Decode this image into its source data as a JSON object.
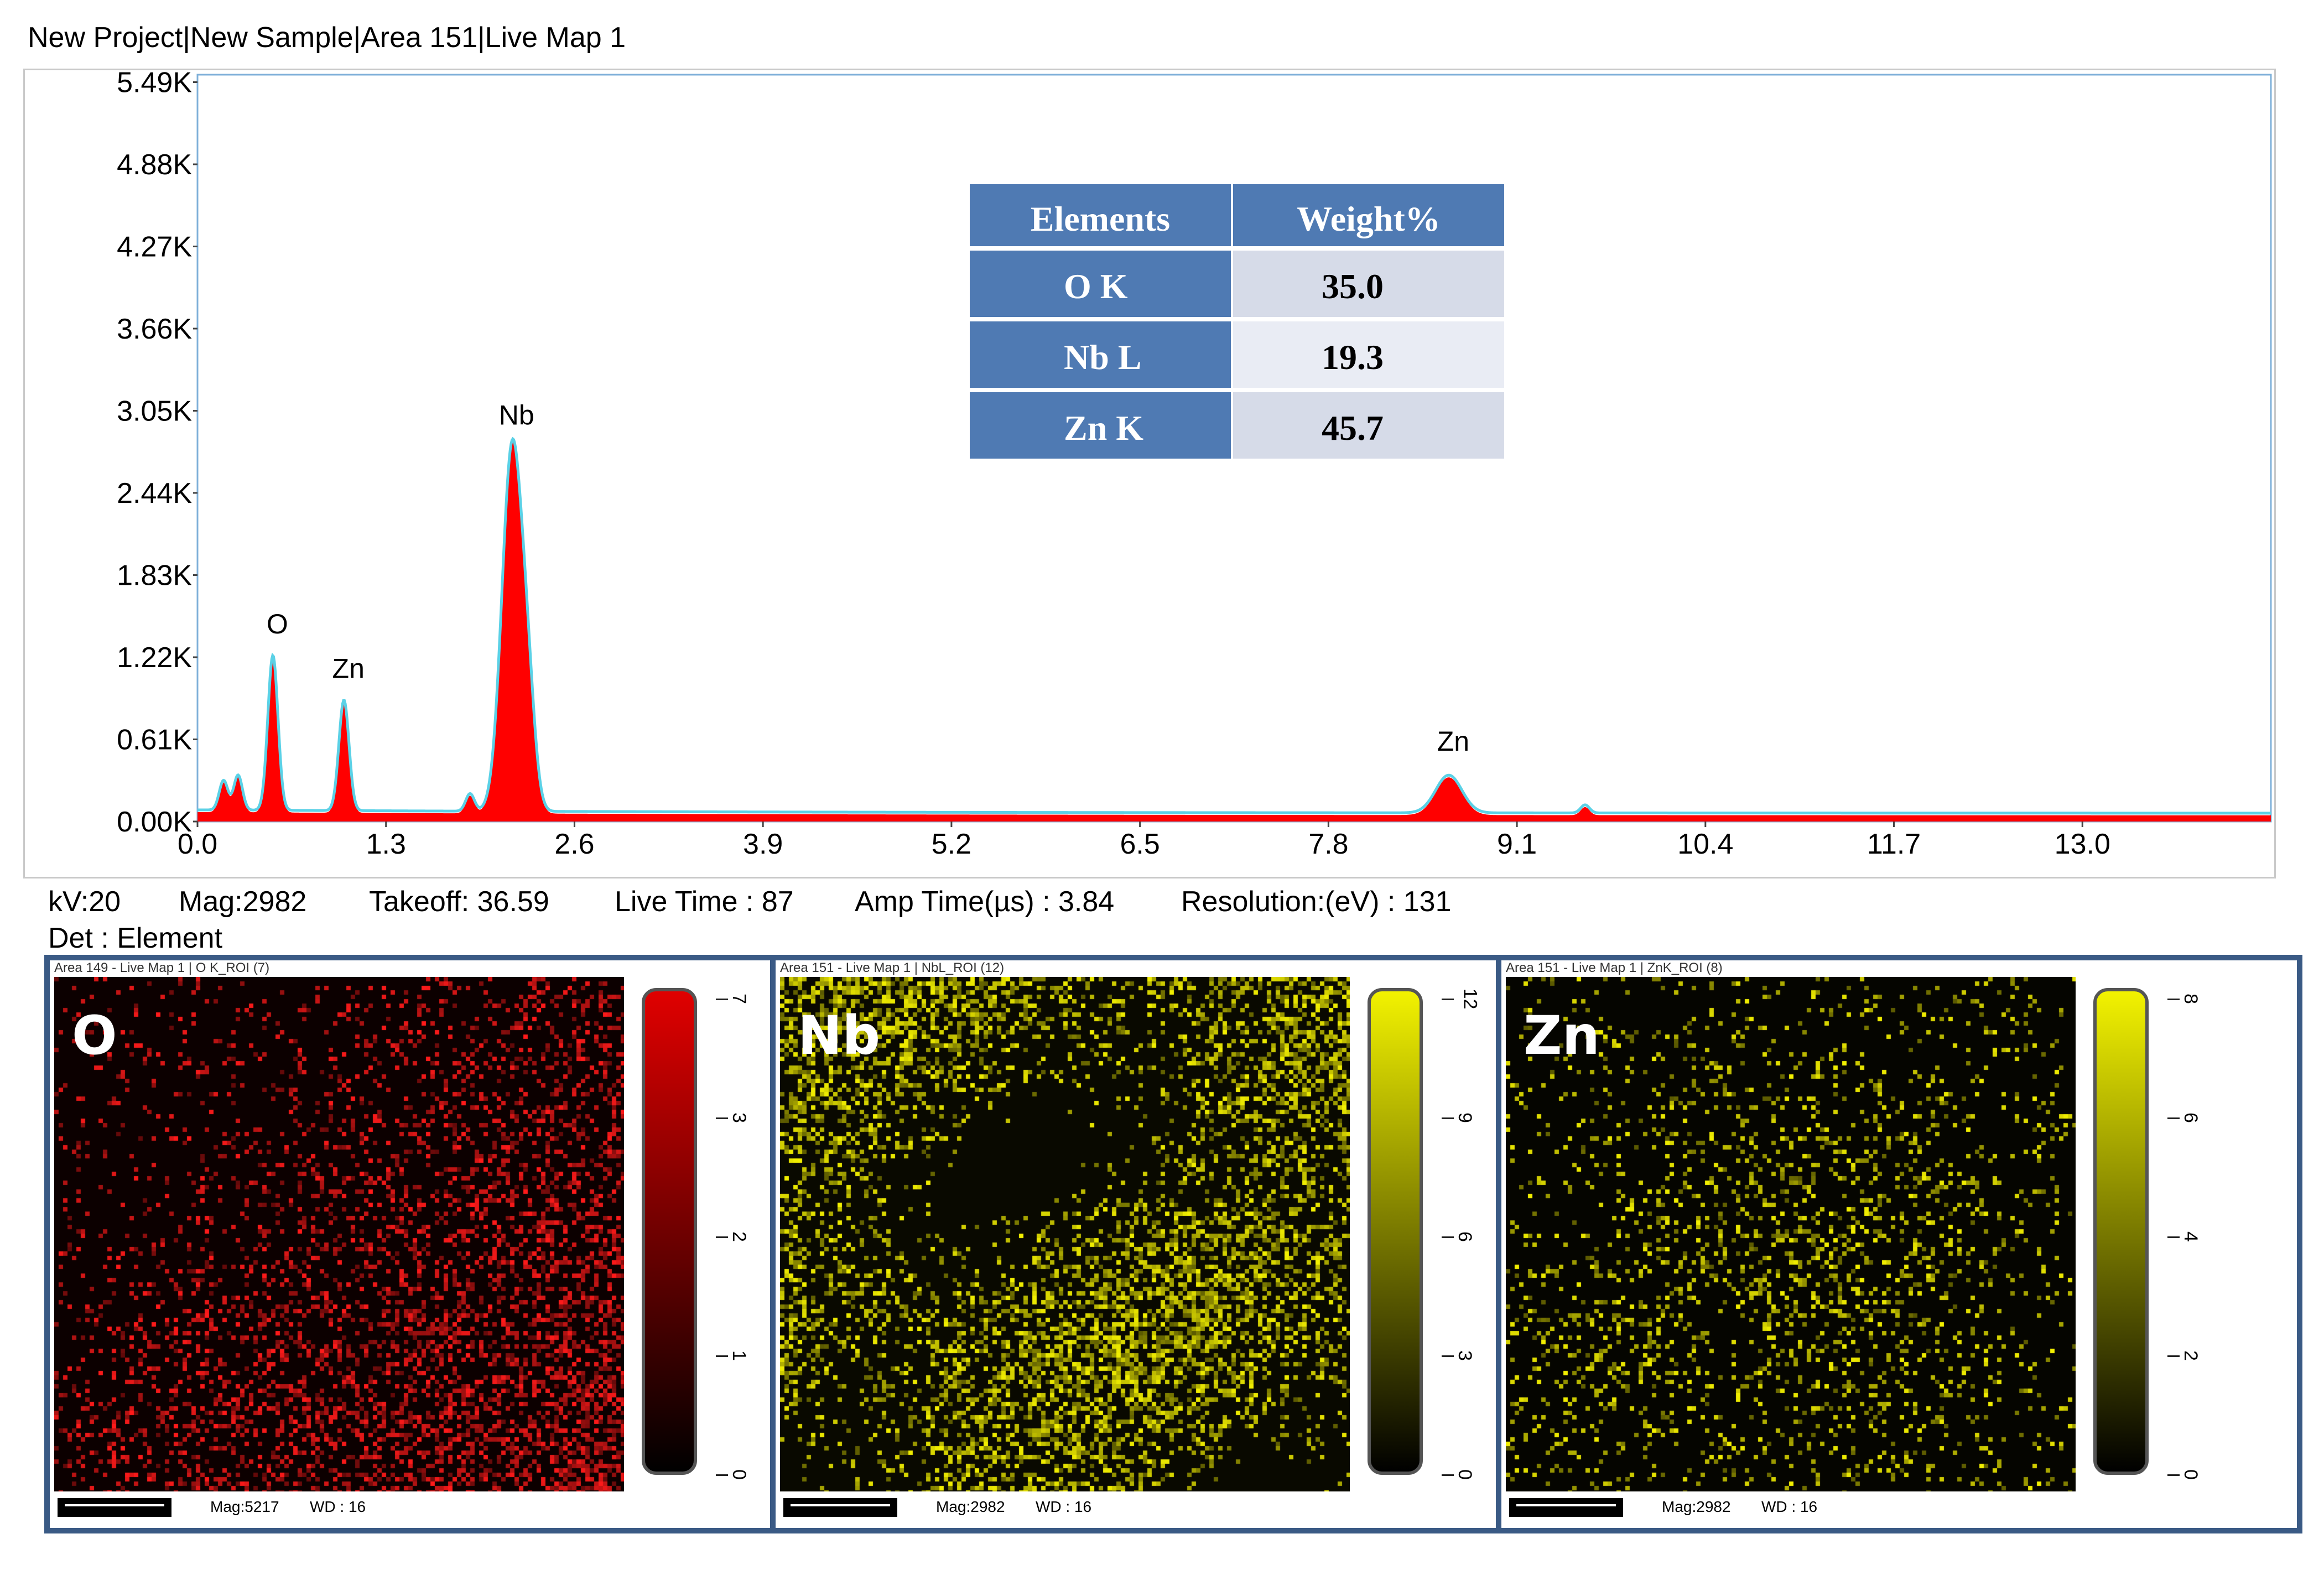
{
  "title": "New Project|New Sample|Area 151|Live Map 1",
  "colors": {
    "frame": "#3a5a85",
    "table_header": "#4f7ab3",
    "table_cell_a": "#d6dbe8",
    "table_cell_b": "#e9ecf4",
    "spectrum_fill": "#ff0000",
    "spectrum_line": "#5bd1e6"
  },
  "chart_data": {
    "type": "area",
    "xlabel": "",
    "ylabel": "",
    "xlim": [
      0.0,
      14.3
    ],
    "ylim": [
      0,
      5490
    ],
    "x_ticks": [
      "0.0",
      "1.3",
      "2.6",
      "3.9",
      "5.2",
      "6.5",
      "7.8",
      "9.1",
      "10.4",
      "11.7",
      "13.0"
    ],
    "y_ticks": [
      "0.00K",
      "0.61K",
      "1.22K",
      "1.83K",
      "2.44K",
      "3.05K",
      "3.66K",
      "4.27K",
      "4.88K",
      "5.49K"
    ],
    "peaks": [
      {
        "label": "O",
        "x": 0.52,
        "y": 1150
      },
      {
        "label": "Zn",
        "x": 1.01,
        "y": 820
      },
      {
        "label": "Nb",
        "x": 2.17,
        "y": 2700
      },
      {
        "label": "Zn",
        "x": 8.63,
        "y": 280
      }
    ],
    "minor_peaks": [
      {
        "x": 0.18,
        "y": 220
      },
      {
        "x": 0.28,
        "y": 260
      },
      {
        "x": 1.88,
        "y": 130
      },
      {
        "x": 9.57,
        "y": 60
      }
    ],
    "table": {
      "headers": [
        "Elements",
        "Weight%"
      ],
      "rows": [
        [
          "O K",
          "35.0"
        ],
        [
          "Nb L",
          "19.3"
        ],
        [
          "Zn K",
          "45.7"
        ]
      ]
    }
  },
  "metrics": {
    "kv": "kV:20",
    "mag": "Mag:2982",
    "takeoff": "Takeoff: 36.59",
    "live_time": "Live Time : 87",
    "amp_time": "Amp Time(µs) : 3.84",
    "resolution": "Resolution:(eV) : 131",
    "det": "Det : Element"
  },
  "maps": [
    {
      "header": "Area 149 - Live Map 1 | O K_ROI (7)",
      "label": "O",
      "color": "#ff1a1a",
      "bg": "#0c0000",
      "ticks": [
        "7",
        "3",
        "2",
        "1",
        "0"
      ],
      "mag": "Mag:5217",
      "wd": "WD : 16",
      "cb_top": "#e00000",
      "cb_bottom": "#000000"
    },
    {
      "header": "Area 151 - Live Map 1 | NbL_ROI (12)",
      "label": "Nb",
      "color": "#f3f000",
      "bg": "#090900",
      "ticks": [
        "12",
        "9",
        "6",
        "3",
        "0"
      ],
      "mag": "Mag:2982",
      "wd": "WD : 16",
      "cb_top": "#f2f200",
      "cb_bottom": "#000000"
    },
    {
      "header": "Area 151 - Live Map 1 | ZnK_ROI (8)",
      "label": "Zn",
      "color": "#f3f000",
      "bg": "#050500",
      "ticks": [
        "8",
        "6",
        "4",
        "2",
        "0"
      ],
      "mag": "Mag:2982",
      "wd": "WD : 16",
      "cb_top": "#f2f200",
      "cb_bottom": "#000000"
    }
  ]
}
